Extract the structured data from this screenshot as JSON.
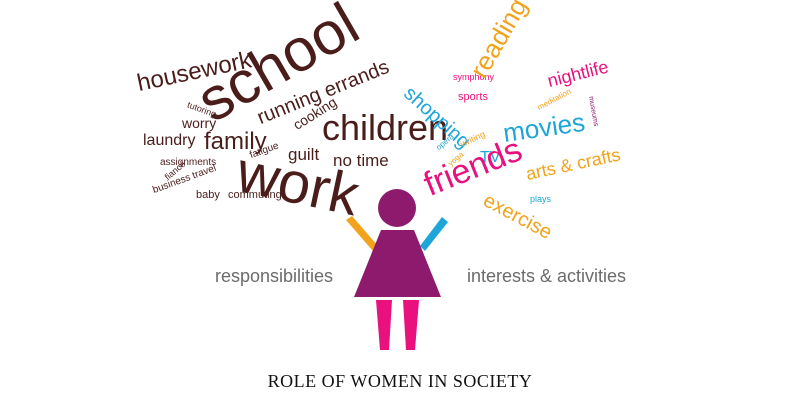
{
  "caption": "ROLE OF WOMEN IN SOCIETY",
  "labels": {
    "responsibilities": "responsibilities",
    "interests": "interests & activities"
  },
  "responsibility_words": [
    "housework",
    "school",
    "running errands",
    "tutoring",
    "worry",
    "fatigue",
    "cooking",
    "children",
    "laundry",
    "family",
    "guilt",
    "no time",
    "assignments",
    "work",
    "fiancé",
    "business travel",
    "baby",
    "commuting"
  ],
  "interest_words": [
    "symphony",
    "shopping",
    "sports",
    "reading",
    "nightlife",
    "meditation",
    "museums",
    "movies",
    "opera",
    "writing",
    "TV",
    "yoga",
    "friends",
    "arts & crafts",
    "plays",
    "exercise"
  ],
  "colors": {
    "responsibilities": "#4a1d1b",
    "figure": "#8e1a6e",
    "legs": "#e8117e",
    "left_arm": "#f2a21b",
    "right_arm": "#1fa6d9",
    "label_gray": "#6b6b6b",
    "blue": "#1fa6d9",
    "pink": "#e8117e",
    "orange": "#f2a21b"
  }
}
